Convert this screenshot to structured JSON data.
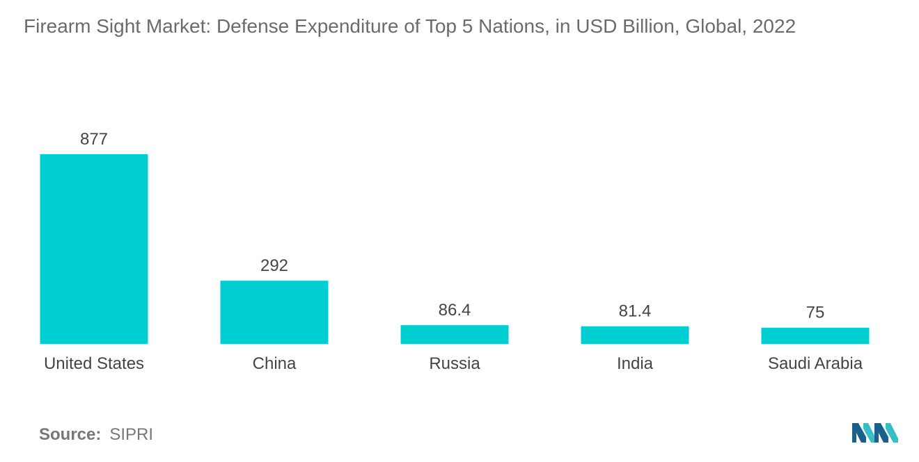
{
  "header": {
    "title": "Firearm Sight Market: Defense Expenditure of Top 5 Nations, in USD Billion, Global, 2022"
  },
  "source": {
    "label": "Source:",
    "value": "SIPRI"
  },
  "colors": {
    "bar": "#00CED1",
    "title_text": "#6b6b6b",
    "label_text": "#444444",
    "logo_dark": "#1b5f8c",
    "logo_light": "#35c0c8"
  },
  "logo": {
    "icon": "mordor-intelligence-logo-icon"
  },
  "chart_data": {
    "type": "bar",
    "title": "Firearm Sight Market: Defense Expenditure of Top 5 Nations, in USD Billion, Global, 2022",
    "categories": [
      "United States",
      "China",
      "Russia",
      "India",
      "Saudi Arabia"
    ],
    "values": [
      877,
      292,
      86.4,
      81.4,
      75
    ],
    "value_labels": [
      "877",
      "292",
      "86.4",
      "81.4",
      "75"
    ],
    "xlabel": "",
    "ylabel": "",
    "ylim": [
      0,
      877
    ],
    "grid": false,
    "legend": "none"
  }
}
